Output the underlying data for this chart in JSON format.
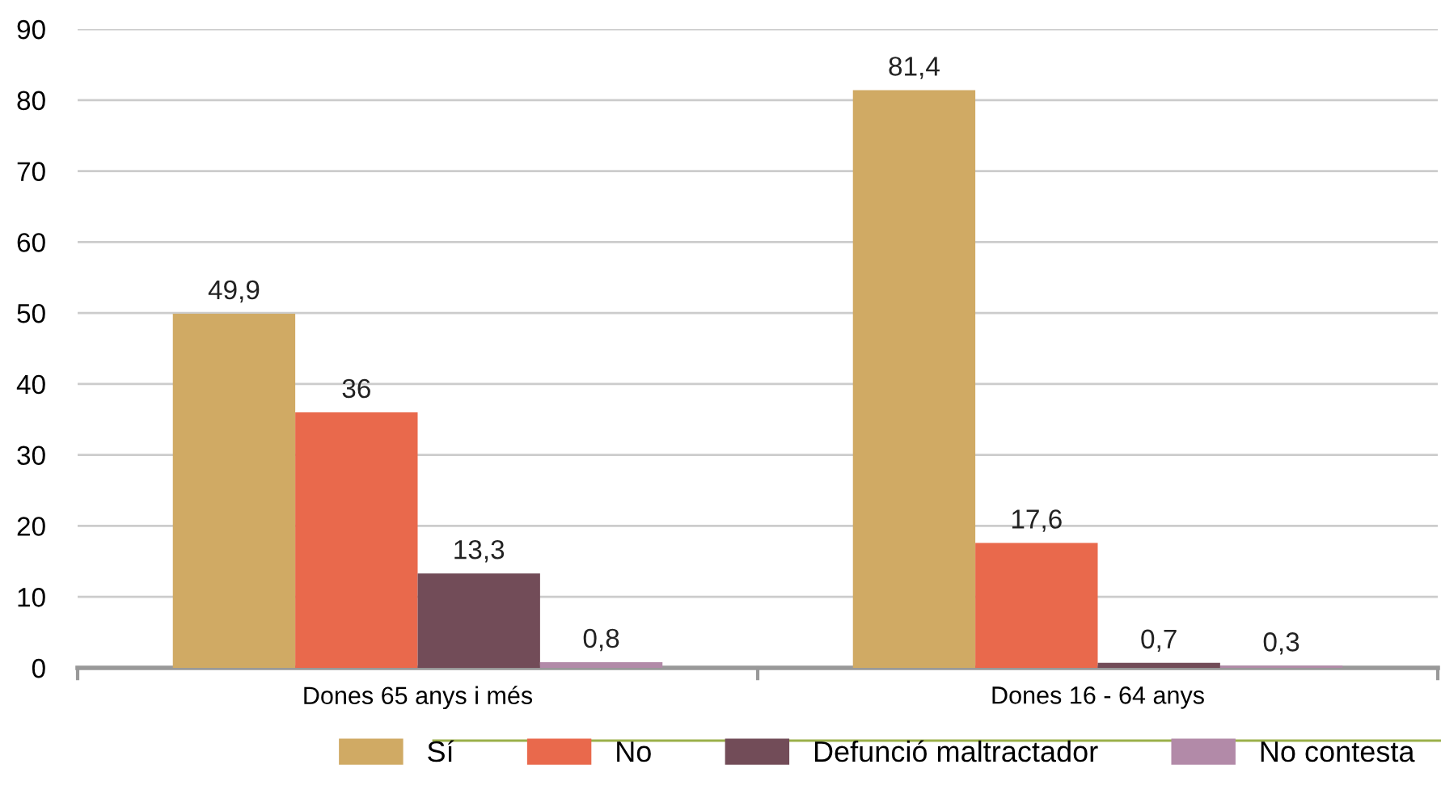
{
  "chart_data": {
    "type": "bar",
    "categories": [
      "Dones 65 anys i més",
      "Dones 16 - 64 anys"
    ],
    "series": [
      {
        "name": "Sí",
        "color": "#d0aa64",
        "values": [
          49.9,
          81.4
        ],
        "value_labels": [
          "49,9",
          "81,4"
        ]
      },
      {
        "name": "No",
        "color": "#e9694c",
        "values": [
          36,
          17.6
        ],
        "value_labels": [
          "36",
          "17,6"
        ]
      },
      {
        "name": "Defunció maltractador",
        "color": "#724c58",
        "values": [
          13.3,
          0.7
        ],
        "value_labels": [
          "13,3",
          "0,7"
        ]
      },
      {
        "name": "No contesta",
        "color": "#b28aa8",
        "values": [
          0.8,
          0.3
        ],
        "value_labels": [
          "0,8",
          "0,3"
        ]
      }
    ],
    "ylim": [
      0,
      90
    ],
    "yticks": [
      0,
      10,
      20,
      30,
      40,
      50,
      60,
      70,
      80,
      90
    ],
    "grid": "y",
    "legend": "bottom"
  }
}
